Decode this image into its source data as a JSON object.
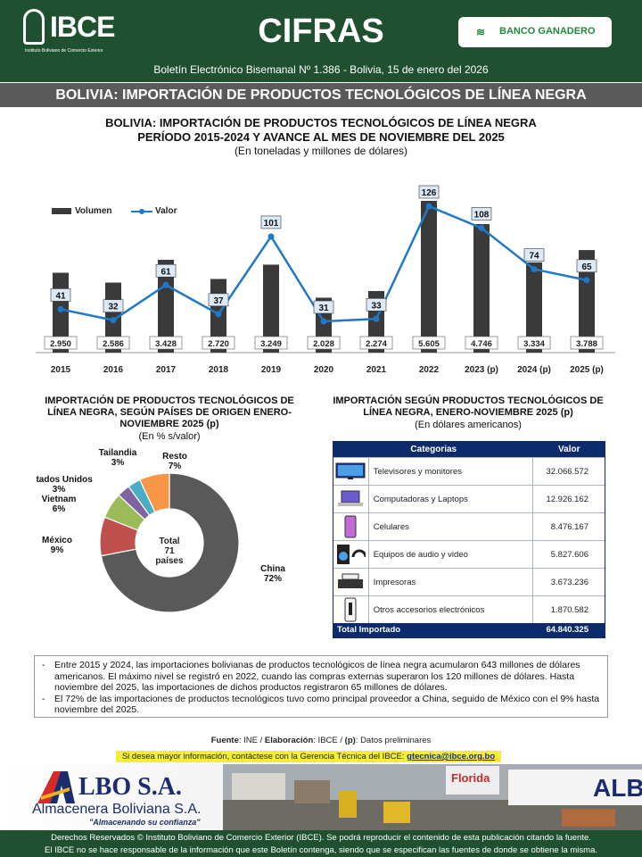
{
  "header": {
    "logo_text": "IBCE",
    "logo_sub": "Instituto Boliviano de Comercio Exterior",
    "title": "CIFRAS",
    "sponsor": "BANCO GANADERO",
    "bulletin": "Boletín Electrónico Bisemanal Nº 1.386 - Bolivia, 15 de enero del 2026"
  },
  "band_title": "BOLIVIA: IMPORTACIÓN DE PRODUCTOS TECNOLÓGICOS DE LÍNEA NEGRA",
  "main_chart": {
    "title_line1": "BOLIVIA: IMPORTACIÓN DE PRODUCTOS TECNOLÓGICOS DE LÍNEA NEGRA",
    "title_line2": "PERÍODO 2015-2024 Y AVANCE AL MES DE NOVIEMBRE DEL 2025",
    "subtitle": "(En toneladas y millones de dólares)",
    "legend_bar": "Volumen",
    "legend_line": "Valor"
  },
  "pie_section": {
    "title": "IMPORTACIÓN DE PRODUCTOS TECNOLÓGICOS DE LÍNEA NEGRA, SEGÚN PAÍSES DE ORIGEN ENERO-NOVIEMBRE 2025 (p)",
    "subtitle": "(En % s/valor)",
    "center_label": "Total",
    "center_value": "71",
    "center_unit": "países"
  },
  "table_section": {
    "title": "IMPORTACIÓN SEGÚN PRODUCTOS TECNOLÓGICOS DE LÍNEA NEGRA, ENERO-NOVIEMBRE 2025 (p)",
    "subtitle": "(En dólares americanos)",
    "col_category": "Categorias",
    "col_value": "Valor",
    "rows": [
      {
        "category": "Televisores y monitores",
        "value": "32.066.572",
        "icon": "tv-icon"
      },
      {
        "category": "Computadoras y Laptops",
        "value": "12.926.162",
        "icon": "laptop-icon"
      },
      {
        "category": "Celulares",
        "value": "8.476.167",
        "icon": "phone-icon"
      },
      {
        "category": "Equipos de audio y video",
        "value": "5.827.606",
        "icon": "speaker-icon"
      },
      {
        "category": "Impresoras",
        "value": "3.673.236",
        "icon": "printer-icon"
      },
      {
        "category": "Otros accesorios electrónicos",
        "value": "1.870.582",
        "icon": "console-icon"
      }
    ],
    "total_label": "Total Importado",
    "total_value": "64.840.325"
  },
  "notes": [
    "Entre 2015 y 2024, las importaciones bolivianas de productos tecnológicos de línea negra acumularon 643 millones de dólares americanos. El máximo nivel se registró en 2022, cuando las compras externas superaron los 120 millones de dólares. Hasta noviembre del 2025, las importaciones de dichos productos registraron 65 millones de dólares.",
    "El 72% de las importaciones de productos tecnológicos tuvo como principal proveedor a China, seguido de México con el 9% hasta noviembre del 2025."
  ],
  "source": {
    "fuente_label": "Fuente",
    "fuente_text": ":  INE / ",
    "elab_label": "Elaboración",
    "elab_text": ": IBCE / ",
    "p_label": "(p)",
    "p_text": ": Datos preliminares"
  },
  "contact": {
    "text": "Si desea mayor información, contáctese con la Gerencia Técnica del IBCE: ",
    "email": "gtecnica@ibce.org.bo"
  },
  "banner": {
    "brand": "LBO S.A.",
    "sub": "Almacenera Boliviana S.A.",
    "slogan": "\"Almacenando su confianza\"",
    "photo_sign_1": "Florida",
    "photo_sign_2": "ALBO"
  },
  "footer": {
    "line1": "Derechos Reservados © Instituto Boliviano de Comercio Exterior (IBCE). Se podrá reproducir el contenido de esta publicación citando la fuente.",
    "line2": "El IBCE no se hace responsable de la información que este Boletín contenga, siendo que se especifican las fuentes de donde se obtiene la misma."
  },
  "colors": {
    "header_green": "#1f5130",
    "bar_dark": "#3a3a3a",
    "line_blue": "#1f78c8",
    "table_navy": "#0d2b6b"
  },
  "chart_data": [
    {
      "type": "bar+line",
      "categories": [
        "2015",
        "2016",
        "2017",
        "2018",
        "2019",
        "2020",
        "2021",
        "2022",
        "2023 (p)",
        "2024 (p)",
        "2025 (p)"
      ],
      "series": [
        {
          "name": "Volumen",
          "type": "bar",
          "values": [
            2950,
            2586,
            3428,
            2720,
            3249,
            2028,
            2274,
            5605,
            4746,
            3334,
            3788
          ],
          "labels": [
            "2.950",
            "2.586",
            "3.428",
            "2.720",
            "3.249",
            "2.028",
            "2.274",
            "5.605",
            "4.746",
            "3.334",
            "3.788"
          ]
        },
        {
          "name": "Valor",
          "type": "line",
          "values": [
            41,
            32,
            61,
            37,
            101,
            31,
            33,
            126,
            108,
            74,
            65
          ]
        }
      ],
      "legend": "top-left"
    },
    {
      "type": "pie",
      "variant": "donut",
      "slices": [
        {
          "name": "China",
          "value": 72,
          "color": "#595959"
        },
        {
          "name": "México",
          "value": 9,
          "color": "#c0504d"
        },
        {
          "name": "Vietnam",
          "value": 6,
          "color": "#9bbb59"
        },
        {
          "name": "Estados Unidos",
          "value": 3,
          "color": "#8064a2"
        },
        {
          "name": "Tailandia",
          "value": 3,
          "color": "#4bacc6"
        },
        {
          "name": "Resto",
          "value": 7,
          "color": "#f79646"
        }
      ]
    }
  ]
}
